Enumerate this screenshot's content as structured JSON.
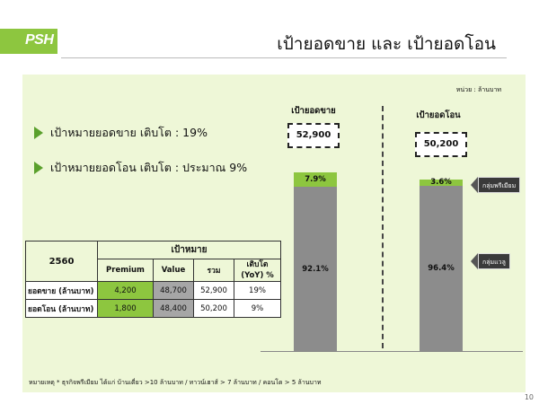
{
  "header": {
    "logo": "PSH",
    "title": "เป้ายอดขาย และ เป้ายอดโอน"
  },
  "unit_label": "หน่วย : ล้านบาท",
  "bullets": [
    "เป้าหมายยอดขาย เติบโต  : 19%",
    "เป้าหมายยอดโอน เติบโต :   ประมาณ 9%"
  ],
  "table": {
    "year": "2560",
    "group_header": "เป้าหมาย",
    "columns": [
      "Premium",
      "Value",
      "รวม",
      "เติบโต (YoY) %"
    ],
    "rows": [
      {
        "label": "ยอดขาย (ล้านบาท)",
        "premium": "4,200",
        "value": "48,700",
        "total": "52,900",
        "growth": "19%"
      },
      {
        "label": "ยอดโอน (ล้านบาท)",
        "premium": "1,800",
        "value": "48,400",
        "total": "50,200",
        "growth": "9%"
      }
    ]
  },
  "chart_data": {
    "type": "bar",
    "stacked": true,
    "normalized": true,
    "categories": [
      "เป้ายอดขาย",
      "เป้ายอดโอน"
    ],
    "category_totals": [
      "52,900",
      "50,200"
    ],
    "series": [
      {
        "name": "กลุ่มพรีเมียม",
        "values": [
          7.9,
          3.6
        ],
        "labels": [
          "7.9%",
          "3.6%"
        ],
        "color": "#8dc63f"
      },
      {
        "name": "กลุ่มแวลู",
        "values": [
          92.1,
          96.4
        ],
        "labels": [
          "92.1%",
          "96.4%"
        ],
        "color": "#8c8c8c"
      }
    ],
    "ylim": [
      0,
      100
    ]
  },
  "footnote": "หมายเหตุ * ธุรกิจพรีเมียม ได้แก่  บ้านเดี่ยว >10 ล้านบาท / ทาวน์เฮาส์ > 7 ล้านบาท /  คอนโด  > 5 ล้านบาท",
  "page_number": "10",
  "colors": {
    "brand_green": "#8dc63f",
    "panel_bg": "#eef7d7",
    "value_grey": "#8c8c8c"
  }
}
